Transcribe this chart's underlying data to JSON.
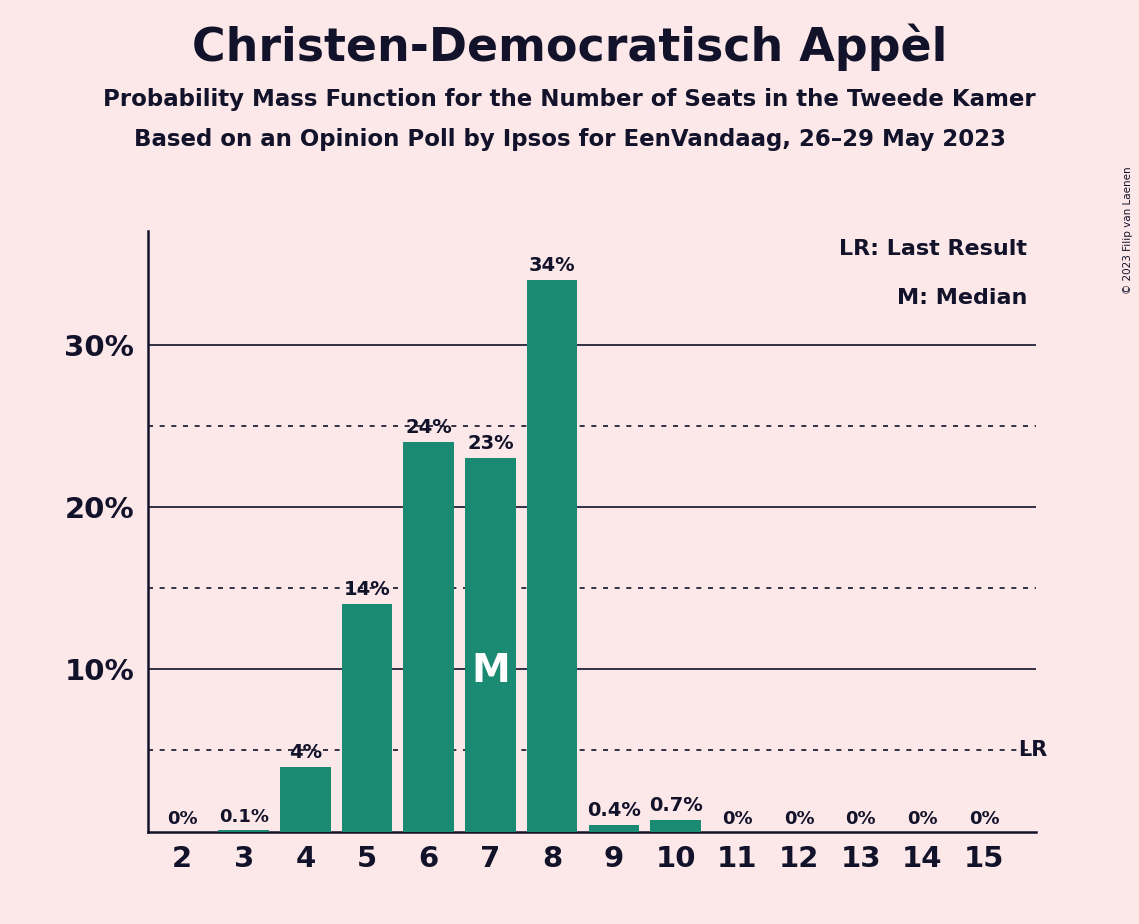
{
  "title": "Christen-Democratisch Appèl",
  "subtitle1": "Probability Mass Function for the Number of Seats in the Tweede Kamer",
  "subtitle2": "Based on an Opinion Poll by Ipsos for EenVandaag, 26–29 May 2023",
  "copyright": "© 2023 Filip van Laenen",
  "categories": [
    2,
    3,
    4,
    5,
    6,
    7,
    8,
    9,
    10,
    11,
    12,
    13,
    14,
    15
  ],
  "values": [
    0.0,
    0.1,
    4.0,
    14.0,
    24.0,
    23.0,
    34.0,
    0.4,
    0.7,
    0.0,
    0.0,
    0.0,
    0.0,
    0.0
  ],
  "bar_color": "#1a8a72",
  "background_color": "#fce8e8",
  "text_color": "#12122a",
  "median_seat": 7,
  "lr_value": 5.0,
  "legend_lr": "LR: Last Result",
  "legend_m": "M: Median",
  "yticks": [
    10,
    20,
    30
  ],
  "ylim": [
    0,
    37
  ],
  "dotted_lines": [
    5,
    15,
    25
  ],
  "solid_lines": [
    10,
    20,
    30
  ],
  "bar_labels": [
    "0%",
    "0.1%",
    "4%",
    "14%",
    "24%",
    "23%",
    "34%",
    "0.4%",
    "0.7%",
    "0%",
    "0%",
    "0%",
    "0%",
    "0%"
  ]
}
